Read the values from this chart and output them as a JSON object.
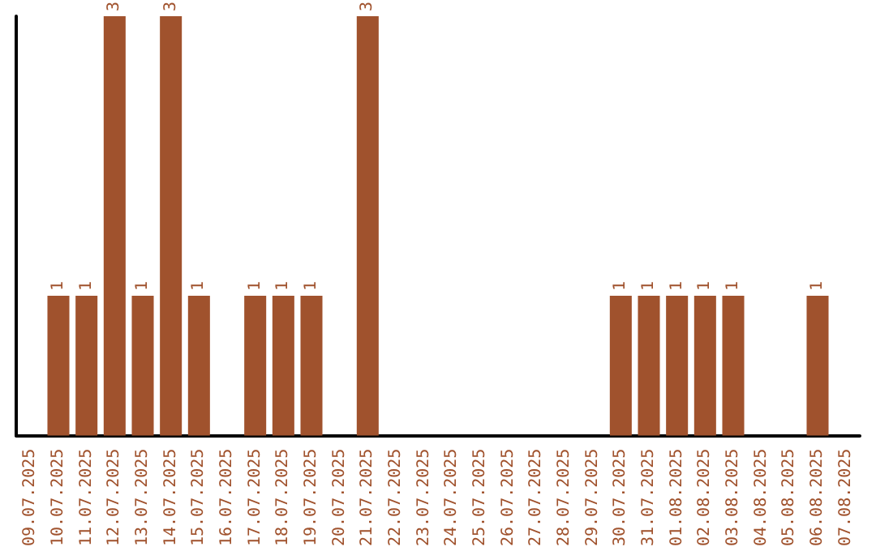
{
  "chart_data": {
    "type": "bar",
    "categories": [
      "09.07.2025",
      "10.07.2025",
      "11.07.2025",
      "12.07.2025",
      "13.07.2025",
      "14.07.2025",
      "15.07.2025",
      "16.07.2025",
      "17.07.2025",
      "18.07.2025",
      "19.07.2025",
      "20.07.2025",
      "21.07.2025",
      "22.07.2025",
      "23.07.2025",
      "24.07.2025",
      "25.07.2025",
      "26.07.2025",
      "27.07.2025",
      "28.07.2025",
      "29.07.2025",
      "30.07.2025",
      "31.07.2025",
      "01.08.2025",
      "02.08.2025",
      "03.08.2025",
      "04.08.2025",
      "05.08.2025",
      "06.08.2025",
      "07.08.2025"
    ],
    "values": [
      null,
      1,
      1,
      3,
      1,
      3,
      1,
      null,
      1,
      1,
      1,
      null,
      3,
      null,
      null,
      null,
      null,
      null,
      null,
      null,
      null,
      1,
      1,
      1,
      1,
      1,
      null,
      null,
      1,
      null
    ],
    "color": "#a0522d",
    "data_labels": true,
    "tick_labels": "x"
  }
}
